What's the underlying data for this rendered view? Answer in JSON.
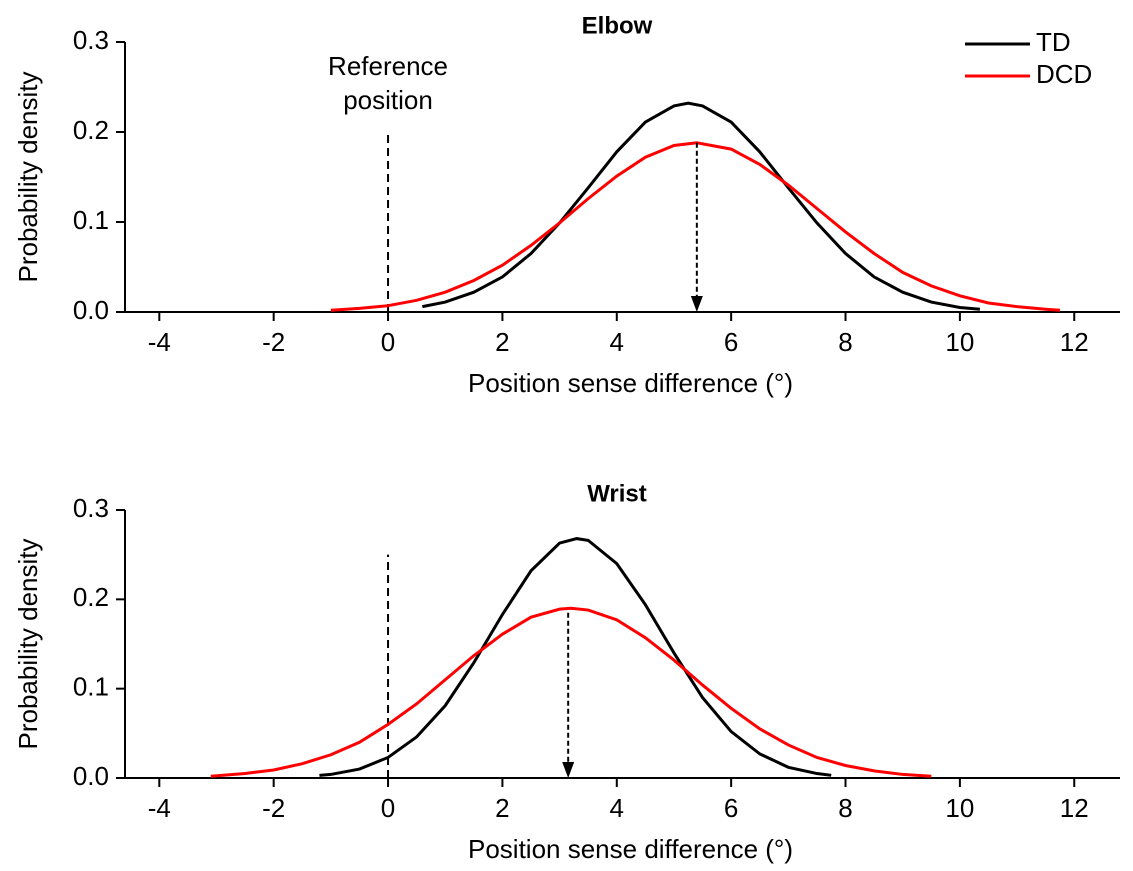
{
  "chart_data": [
    {
      "type": "line",
      "title": "Elbow",
      "x_label": "Position sense difference (°)",
      "y_label": "Probability density",
      "xlim": [
        -4.6,
        12.8
      ],
      "xticks": [
        -4,
        -2,
        0,
        2,
        4,
        6,
        8,
        10,
        12
      ],
      "ylim": [
        0,
        0.3
      ],
      "yticks": [
        {
          "value": 0,
          "label": "0.0"
        },
        0.1,
        0.2,
        0.3
      ],
      "legend": "upper right",
      "annotation": "Reference position",
      "reference_line": {
        "x": 0,
        "y": [
          0,
          0.2
        ]
      },
      "arrow": {
        "x": 5.4,
        "y_from": 0.188,
        "y_to": 0
      },
      "series": [
        {
          "name": "TD",
          "color": "#000000",
          "x": [
            0.6,
            1,
            1.5,
            2,
            2.5,
            3,
            3.5,
            4,
            4.5,
            5,
            5.25,
            5.5,
            6,
            6.5,
            7,
            7.5,
            8,
            8.5,
            9,
            9.5,
            10,
            10.35
          ],
          "values": [
            0.006,
            0.011,
            0.022,
            0.039,
            0.065,
            0.099,
            0.138,
            0.178,
            0.211,
            0.229,
            0.232,
            0.229,
            0.211,
            0.178,
            0.138,
            0.099,
            0.065,
            0.039,
            0.022,
            0.011,
            0.005,
            0.003
          ]
        },
        {
          "name": "DCD",
          "color": "#ff0000",
          "x": [
            -1,
            -0.5,
            0,
            0.5,
            1,
            1.5,
            2,
            2.5,
            3,
            3.5,
            4,
            4.5,
            5,
            5.4,
            6,
            6.5,
            7,
            7.5,
            8,
            8.5,
            9,
            9.5,
            10,
            10.5,
            11,
            11.5,
            11.75
          ],
          "values": [
            0.002,
            0.004,
            0.007,
            0.013,
            0.022,
            0.035,
            0.052,
            0.074,
            0.099,
            0.126,
            0.151,
            0.172,
            0.185,
            0.188,
            0.181,
            0.164,
            0.141,
            0.115,
            0.089,
            0.065,
            0.044,
            0.029,
            0.018,
            0.01,
            0.006,
            0.003,
            0.002
          ]
        }
      ]
    },
    {
      "type": "line",
      "title": "Wrist",
      "x_label": "Position sense difference (°)",
      "y_label": "Probability density",
      "xlim": [
        -4.6,
        12.8
      ],
      "xticks": [
        -4,
        -2,
        0,
        2,
        4,
        6,
        8,
        10,
        12
      ],
      "ylim": [
        0,
        0.3
      ],
      "yticks": [
        {
          "value": 0,
          "label": "0.0"
        },
        0.1,
        0.2,
        0.3
      ],
      "reference_line": {
        "x": 0,
        "y": [
          0,
          0.25
        ]
      },
      "arrow": {
        "x": 3.15,
        "y_from": 0.185,
        "y_to": 0
      },
      "series": [
        {
          "color": "#000000",
          "x": [
            -1.2,
            -1,
            -0.5,
            0,
            0.5,
            1,
            1.5,
            2,
            2.5,
            3,
            3.3,
            3.5,
            4,
            4.5,
            5,
            5.5,
            6,
            6.5,
            7,
            7.5,
            7.75
          ],
          "values": [
            0.003,
            0.004,
            0.01,
            0.023,
            0.046,
            0.081,
            0.129,
            0.183,
            0.232,
            0.263,
            0.268,
            0.266,
            0.24,
            0.194,
            0.14,
            0.09,
            0.052,
            0.027,
            0.012,
            0.005,
            0.003
          ]
        },
        {
          "color": "#ff0000",
          "x": [
            -3.1,
            -2.5,
            -2,
            -1.5,
            -1,
            -0.5,
            0,
            0.5,
            1,
            1.5,
            2,
            2.5,
            3,
            3.2,
            3.5,
            4,
            4.5,
            5,
            5.5,
            6,
            6.5,
            7,
            7.5,
            8,
            8.5,
            9,
            9.5
          ],
          "values": [
            0.002,
            0.005,
            0.009,
            0.016,
            0.026,
            0.04,
            0.06,
            0.083,
            0.11,
            0.137,
            0.161,
            0.18,
            0.189,
            0.19,
            0.188,
            0.177,
            0.157,
            0.132,
            0.104,
            0.078,
            0.055,
            0.037,
            0.023,
            0.014,
            0.008,
            0.004,
            0.002
          ]
        }
      ]
    }
  ]
}
